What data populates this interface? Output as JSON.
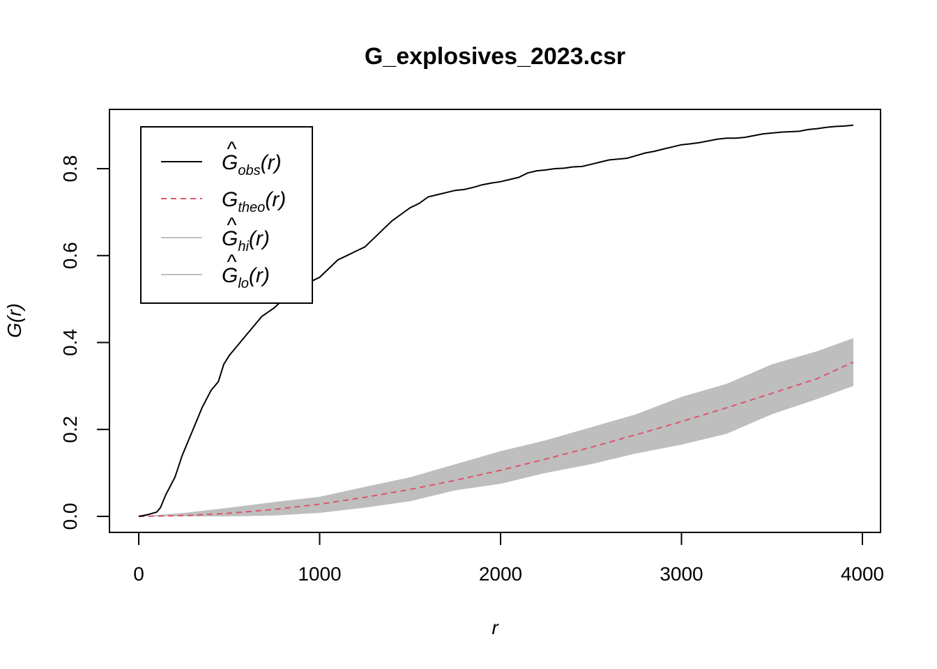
{
  "chart_data": {
    "type": "line",
    "title": "G_explosives_2023.csr",
    "xlabel": "r",
    "ylabel": "G(r)",
    "xlim": [
      0,
      4000
    ],
    "ylim": [
      0,
      0.9
    ],
    "x_ticks": [
      0,
      1000,
      2000,
      3000,
      4000
    ],
    "x_tick_labels": [
      "0",
      "1000",
      "2000",
      "3000",
      "4000"
    ],
    "y_ticks": [
      0.0,
      0.2,
      0.4,
      0.6,
      0.8
    ],
    "y_tick_labels": [
      "0.0",
      "0.2",
      "0.4",
      "0.6",
      "0.8"
    ],
    "legend_position": "top-left",
    "legend": [
      {
        "key": "obs",
        "base": "G",
        "hat": true,
        "sub": "obs",
        "arg": "(r)",
        "color": "#000000",
        "style": "solid"
      },
      {
        "key": "theo",
        "base": "G",
        "hat": false,
        "sub": "theo",
        "arg": "(r)",
        "color": "#DF536B",
        "style": "dashed"
      },
      {
        "key": "hi",
        "base": "G",
        "hat": true,
        "sub": "hi",
        "arg": "(r)",
        "color": "#BEBEBE",
        "style": "solid"
      },
      {
        "key": "lo",
        "base": "G",
        "hat": true,
        "sub": "lo",
        "arg": "(r)",
        "color": "#BEBEBE",
        "style": "solid"
      }
    ],
    "series": [
      {
        "name": "obs",
        "x": [
          0,
          50,
          100,
          120,
          150,
          200,
          240,
          270,
          300,
          350,
          400,
          440,
          470,
          500,
          540,
          600,
          680,
          750,
          800,
          850,
          900,
          950,
          1000,
          1050,
          1100,
          1150,
          1200,
          1250,
          1300,
          1350,
          1400,
          1450,
          1500,
          1550,
          1600,
          1650,
          1700,
          1750,
          1800,
          1850,
          1900,
          1950,
          2000,
          2050,
          2100,
          2150,
          2200,
          2250,
          2300,
          2350,
          2400,
          2450,
          2500,
          2550,
          2600,
          2650,
          2700,
          2750,
          2800,
          2850,
          2900,
          2950,
          3000,
          3050,
          3100,
          3150,
          3200,
          3250,
          3300,
          3350,
          3400,
          3450,
          3500,
          3550,
          3600,
          3650,
          3700,
          3750,
          3800,
          3850,
          3900,
          3950
        ],
        "y": [
          0.0,
          0.004,
          0.01,
          0.02,
          0.05,
          0.09,
          0.14,
          0.17,
          0.2,
          0.25,
          0.29,
          0.31,
          0.35,
          0.37,
          0.39,
          0.42,
          0.46,
          0.48,
          0.5,
          0.51,
          0.53,
          0.54,
          0.55,
          0.57,
          0.59,
          0.6,
          0.61,
          0.62,
          0.64,
          0.66,
          0.68,
          0.695,
          0.71,
          0.72,
          0.735,
          0.74,
          0.745,
          0.75,
          0.752,
          0.757,
          0.763,
          0.767,
          0.77,
          0.775,
          0.78,
          0.79,
          0.795,
          0.797,
          0.8,
          0.801,
          0.804,
          0.805,
          0.81,
          0.815,
          0.82,
          0.822,
          0.824,
          0.83,
          0.836,
          0.84,
          0.845,
          0.85,
          0.855,
          0.857,
          0.86,
          0.864,
          0.868,
          0.87,
          0.87,
          0.872,
          0.876,
          0.88,
          0.882,
          0.884,
          0.885,
          0.886,
          0.89,
          0.892,
          0.895,
          0.897,
          0.898,
          0.9
        ]
      },
      {
        "name": "theo",
        "x": [
          0,
          250,
          500,
          750,
          1000,
          1250,
          1500,
          1750,
          2000,
          2250,
          2500,
          2750,
          3000,
          3250,
          3500,
          3750,
          3950
        ],
        "y": [
          0.0,
          0.0018,
          0.0072,
          0.016,
          0.028,
          0.044,
          0.062,
          0.083,
          0.106,
          0.132,
          0.159,
          0.188,
          0.218,
          0.25,
          0.283,
          0.317,
          0.355
        ]
      },
      {
        "name": "hi",
        "x": [
          0,
          250,
          500,
          750,
          1000,
          1250,
          1500,
          1750,
          2000,
          2250,
          2500,
          2750,
          3000,
          3250,
          3500,
          3750,
          3950
        ],
        "y": [
          0.0,
          0.008,
          0.02,
          0.033,
          0.045,
          0.068,
          0.09,
          0.12,
          0.15,
          0.175,
          0.205,
          0.235,
          0.275,
          0.305,
          0.35,
          0.38,
          0.41
        ]
      },
      {
        "name": "lo",
        "x": [
          0,
          250,
          500,
          750,
          1000,
          1250,
          1500,
          1750,
          2000,
          2250,
          2500,
          2750,
          3000,
          3250,
          3500,
          3750,
          3950
        ],
        "y": [
          0.0,
          0.0,
          0.0,
          0.002,
          0.008,
          0.02,
          0.035,
          0.06,
          0.075,
          0.1,
          0.12,
          0.145,
          0.165,
          0.19,
          0.235,
          0.27,
          0.3
        ]
      }
    ]
  }
}
